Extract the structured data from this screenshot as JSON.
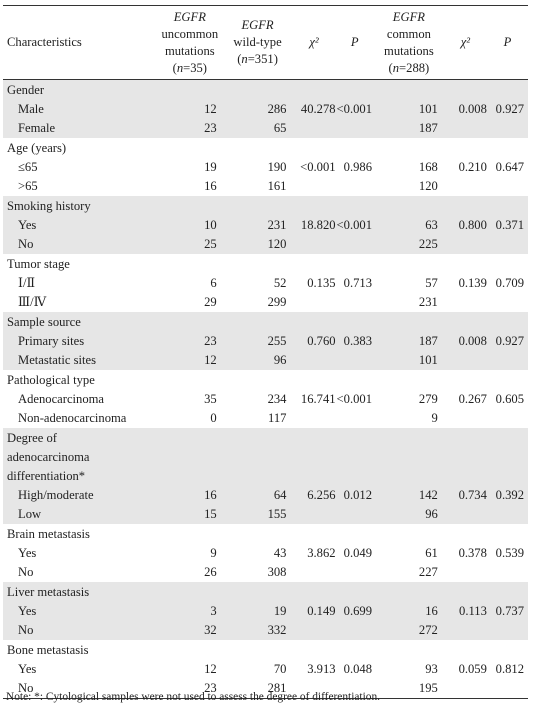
{
  "headers": {
    "characteristics": "Characteristics",
    "uncommon": {
      "line1": "EGFR",
      "line2": "uncommon",
      "line3": "mutations",
      "line4": "(n=35)"
    },
    "wildtype": {
      "line1": "EGFR",
      "line2": "wild-type",
      "line3": "(n=351)"
    },
    "chi1": "χ²",
    "p1": "P",
    "common": {
      "line1": "EGFR",
      "line2": "common",
      "line3": "mutations",
      "line4": "(n=288)"
    },
    "chi2": "χ²",
    "p2": "P"
  },
  "groups": [
    {
      "title": "Gender",
      "shade": true,
      "rows": [
        {
          "label": "Male",
          "uncommon": "12",
          "wild": "286",
          "chi1": "40.278",
          "p1": "<0.001",
          "common": "101",
          "chi2": "0.008",
          "p2": "0.927"
        },
        {
          "label": "Female",
          "uncommon": "23",
          "wild": "65",
          "chi1": "",
          "p1": "",
          "common": "187",
          "chi2": "",
          "p2": ""
        }
      ]
    },
    {
      "title": "Age (years)",
      "shade": false,
      "rows": [
        {
          "label": "≤65",
          "uncommon": "19",
          "wild": "190",
          "chi1": "<0.001",
          "p1": "0.986",
          "common": "168",
          "chi2": "0.210",
          "p2": "0.647"
        },
        {
          "label": ">65",
          "uncommon": "16",
          "wild": "161",
          "chi1": "",
          "p1": "",
          "common": "120",
          "chi2": "",
          "p2": ""
        }
      ]
    },
    {
      "title": "Smoking history",
      "shade": true,
      "rows": [
        {
          "label": "Yes",
          "uncommon": "10",
          "wild": "231",
          "chi1": "18.820",
          "p1": "<0.001",
          "common": "63",
          "chi2": "0.800",
          "p2": "0.371"
        },
        {
          "label": "No",
          "uncommon": "25",
          "wild": "120",
          "chi1": "",
          "p1": "",
          "common": "225",
          "chi2": "",
          "p2": ""
        }
      ]
    },
    {
      "title": "Tumor stage",
      "shade": false,
      "rows": [
        {
          "label": "Ⅰ/Ⅱ",
          "uncommon": "6",
          "wild": "52",
          "chi1": "0.135",
          "p1": "0.713",
          "common": "57",
          "chi2": "0.139",
          "p2": "0.709"
        },
        {
          "label": "Ⅲ/Ⅳ",
          "uncommon": "29",
          "wild": "299",
          "chi1": "",
          "p1": "",
          "common": "231",
          "chi2": "",
          "p2": ""
        }
      ]
    },
    {
      "title": "Sample source",
      "shade": true,
      "rows": [
        {
          "label": "Primary sites",
          "uncommon": "23",
          "wild": "255",
          "chi1": "0.760",
          "p1": "0.383",
          "common": "187",
          "chi2": "0.008",
          "p2": "0.927"
        },
        {
          "label": "Metastatic sites",
          "uncommon": "12",
          "wild": "96",
          "chi1": "",
          "p1": "",
          "common": "101",
          "chi2": "",
          "p2": ""
        }
      ]
    },
    {
      "title": "Pathological type",
      "shade": false,
      "rows": [
        {
          "label": "Adenocarcinoma",
          "uncommon": "35",
          "wild": "234",
          "chi1": "16.741",
          "p1": "<0.001",
          "common": "279",
          "chi2": "0.267",
          "p2": "0.605"
        },
        {
          "label": "Non-adenocarcinoma",
          "uncommon": "0",
          "wild": "117",
          "chi1": "",
          "p1": "",
          "common": "9",
          "chi2": "",
          "p2": ""
        }
      ]
    },
    {
      "title_lines": [
        "Degree of",
        "adenocarcinoma",
        "differentiation*"
      ],
      "shade": true,
      "rows": [
        {
          "label": "High/moderate",
          "uncommon": "16",
          "wild": "64",
          "chi1": "6.256",
          "p1": "0.012",
          "common": "142",
          "chi2": "0.734",
          "p2": "0.392"
        },
        {
          "label": "Low",
          "uncommon": "15",
          "wild": "155",
          "chi1": "",
          "p1": "",
          "common": "96",
          "chi2": "",
          "p2": ""
        }
      ]
    },
    {
      "title": "Brain metastasis",
      "shade": false,
      "rows": [
        {
          "label": "Yes",
          "uncommon": "9",
          "wild": "43",
          "chi1": "3.862",
          "p1": "0.049",
          "common": "61",
          "chi2": "0.378",
          "p2": "0.539"
        },
        {
          "label": "No",
          "uncommon": "26",
          "wild": "308",
          "chi1": "",
          "p1": "",
          "common": "227",
          "chi2": "",
          "p2": ""
        }
      ]
    },
    {
      "title": "Liver metastasis",
      "shade": true,
      "rows": [
        {
          "label": "Yes",
          "uncommon": "3",
          "wild": "19",
          "chi1": "0.149",
          "p1": "0.699",
          "common": "16",
          "chi2": "0.113",
          "p2": "0.737"
        },
        {
          "label": "No",
          "uncommon": "32",
          "wild": "332",
          "chi1": "",
          "p1": "",
          "common": "272",
          "chi2": "",
          "p2": ""
        }
      ]
    },
    {
      "title": "Bone metastasis",
      "shade": false,
      "rows": [
        {
          "label": "Yes",
          "uncommon": "12",
          "wild": "70",
          "chi1": "3.913",
          "p1": "0.048",
          "common": "93",
          "chi2": "0.059",
          "p2": "0.812"
        },
        {
          "label": "No",
          "uncommon": "23",
          "wild": "281",
          "chi1": "",
          "p1": "",
          "common": "195",
          "chi2": "",
          "p2": ""
        }
      ]
    }
  ],
  "note": "Note: *: Cytological samples were not used to assess the degree of differentiation."
}
